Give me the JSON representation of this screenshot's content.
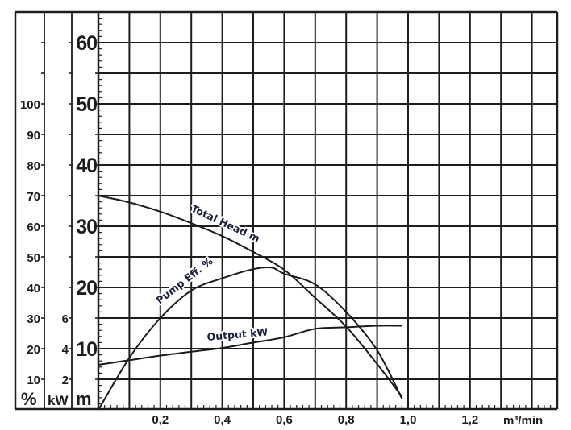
{
  "chart_data": {
    "type": "line",
    "title": "",
    "xlabel": "m³/min",
    "xlim": [
      0,
      1.48
    ],
    "x_ticks": [
      "0,2",
      "0,4",
      "0,6",
      "0,8",
      "1,0",
      "1,2"
    ],
    "x_tick_values": [
      0.2,
      0.4,
      0.6,
      0.8,
      1.0,
      1.2
    ],
    "grid": true,
    "y_axes": [
      {
        "label": "%",
        "ticks": [
          "10",
          "20",
          "30",
          "40",
          "50",
          "60",
          "70",
          "80",
          "90",
          "100"
        ],
        "range": [
          0,
          100
        ]
      },
      {
        "label": "kW",
        "ticks": [
          "2",
          "4",
          "6"
        ],
        "range": [
          0,
          6
        ]
      },
      {
        "label": "m",
        "ticks": [
          "10",
          "20",
          "30",
          "40",
          "50",
          "60"
        ],
        "range": [
          0,
          65
        ]
      }
    ],
    "series": [
      {
        "name": "Total Head m",
        "axis": "m",
        "x": [
          0.0,
          0.1,
          0.2,
          0.3,
          0.4,
          0.5,
          0.6,
          0.7,
          0.8,
          0.9,
          0.98
        ],
        "values": [
          35.0,
          33.9,
          32.4,
          30.5,
          28.4,
          25.8,
          22.9,
          18.3,
          13.6,
          7.5,
          2.2
        ]
      },
      {
        "name": "Pump Eff. %",
        "axis": "%",
        "x": [
          0.0,
          0.1,
          0.2,
          0.3,
          0.4,
          0.5,
          0.56,
          0.6,
          0.7,
          0.8,
          0.9,
          0.98
        ],
        "values": [
          0,
          17,
          30,
          39,
          43,
          46,
          46.5,
          44.5,
          41,
          32,
          19.5,
          3.7
        ]
      },
      {
        "name": "Output kW",
        "axis": "kW",
        "x": [
          0.0,
          0.1,
          0.2,
          0.3,
          0.4,
          0.5,
          0.6,
          0.7,
          0.8,
          0.9,
          0.98
        ],
        "values": [
          2.95,
          3.25,
          3.55,
          3.8,
          4.05,
          4.4,
          4.75,
          5.3,
          5.4,
          5.5,
          5.5
        ]
      }
    ]
  },
  "labels": {
    "head": "Total Head m",
    "eff": "Pump Eff. %",
    "output": "Output kW",
    "unit_pct": "%",
    "unit_kw": "kW",
    "unit_m": "m",
    "xunit": "m³/min"
  }
}
